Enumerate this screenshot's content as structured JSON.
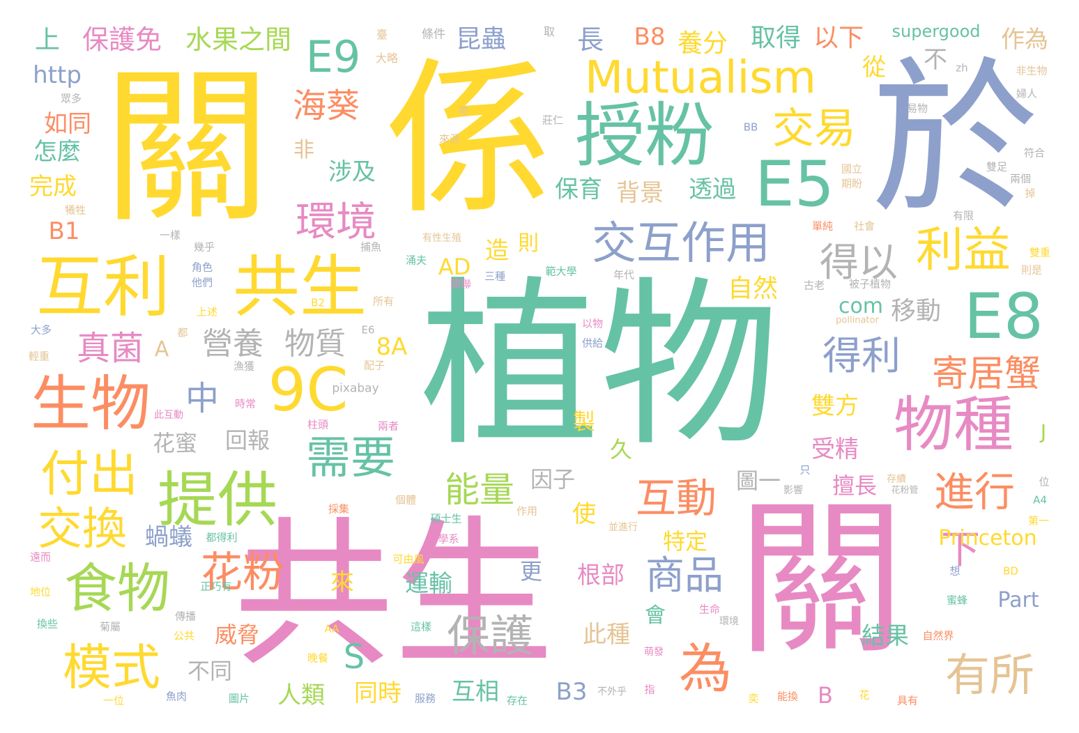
{
  "words": {
    "w001": "植物",
    "w002": "共生",
    "w003": "關",
    "w004": "係",
    "w005": "於",
    "w006": "關",
    "w007": "授粉",
    "w008": "Mutualism",
    "w009": "互利",
    "w010": "共生",
    "w011": "生物",
    "w012": "E5",
    "w013": "E8",
    "w014": "E9",
    "w015": "9C",
    "w016": "交互作用",
    "w017": "利益",
    "w018": "交易",
    "w019": "環境",
    "w020": "物種",
    "w021": "提供",
    "w022": "食物",
    "w023": "需要",
    "w024": "付出",
    "w025": "交換",
    "w026": "模式",
    "w027": "為",
    "w028": "得以",
    "w029": "得利",
    "w030": "寄居蟹",
    "w031": "進行",
    "w032": "互動",
    "w033": "保護",
    "w034": "花粉",
    "w035": "商品",
    "w036": "有所",
    "w037": "下",
    "w038": "海葵",
    "w039": "真菌",
    "w040": "中",
    "w041": "S",
    "w042": "能量",
    "w043": "營養",
    "w044": "物質",
    "w045": "保護免",
    "w046": "水果之間",
    "w047": "昆蟲",
    "w048": "長",
    "w049": "B8",
    "w050": "養分",
    "w051": "取得",
    "w052": "以下",
    "w053": "作為",
    "w054": "supergood",
    "w055": "上",
    "w056": "http",
    "w057": "如同",
    "w058": "怎麼",
    "w059": "完成",
    "w060": "B1",
    "w061": "非",
    "w062": "涉及",
    "w063": "保育",
    "w064": "背景",
    "w065": "透過",
    "w066": "從",
    "w067": "不",
    "w068": "造",
    "w069": "則",
    "w070": "AD",
    "w071": "自然",
    "w072": "com",
    "w073": "移動",
    "w074": "A",
    "w075": "8A",
    "w076": "花蜜",
    "w077": "回報",
    "w078": "雙方",
    "w079": "受精",
    "w080": "製",
    "w081": "久",
    "w082": "因子",
    "w083": "圖一",
    "w084": "擅長",
    "w085": "使",
    "w086": "特定",
    "w087": "Princeton",
    "w088": "蝸蟻",
    "w089": "更",
    "w090": "運輸",
    "w091": "來",
    "w092": "根部",
    "w093": "會",
    "w094": "此種",
    "w095": "結果",
    "w096": "Part",
    "w097": "威脅",
    "w098": "不同",
    "w099": "人類",
    "w100": "同時",
    "w101": "互相",
    "w102": "B3",
    "w103": "B",
    "w104": "J",
    "w105": "條件",
    "w106": "取",
    "w107": "臺",
    "w108": "大略",
    "w109": "zh",
    "w110": "眾多",
    "w111": "帶",
    "w112": "莊仁",
    "w113": "來源",
    "w114": "易物",
    "w115": "BB",
    "w116": "非生物",
    "w117": "婦人",
    "w118": "符合",
    "w119": "國立",
    "w120": "期盼",
    "w121": "犧牲",
    "w122": "雙足",
    "w123": "兩個",
    "w124": "掉",
    "w125": "有限",
    "w126": "一樣",
    "w127": "幾乎",
    "w128": "有性生殖",
    "w129": "捕魚",
    "w130": "單純",
    "w131": "社會",
    "w132": "角色",
    "w133": "他們",
    "w134": "涌夫",
    "w135": "三種",
    "w136": "範大學",
    "w137": "年代",
    "w138": "關聯",
    "w139": "雙重",
    "w140": "則是",
    "w141": "上述",
    "w142": "B2",
    "w143": "所有",
    "w144": "古老",
    "w145": "被子植物",
    "w146": "大多",
    "w147": "都",
    "w148": "E6",
    "w149": "以物",
    "w150": "pollinator",
    "w151": "輕重",
    "w152": "供給",
    "w153": "漁獲",
    "w154": "配子",
    "w155": "pixabay",
    "w156": "時常",
    "w157": "此互動",
    "w158": "柱頭",
    "w159": "兩者",
    "w160": "只",
    "w161": "存續",
    "w162": "位",
    "w163": "影響",
    "w164": "花粉管",
    "w165": "A4",
    "w166": "個體",
    "w167": "碩士生",
    "w168": "作用",
    "w169": "並進行",
    "w170": "都得利",
    "w171": "採集",
    "w172": "科學系",
    "w173": "第一",
    "w174": "遠而",
    "w175": "可由風",
    "w176": "BD",
    "w177": "想",
    "w178": "地位",
    "w179": "正巧有",
    "w180": "生命",
    "w181": "蜜蜂",
    "w182": "傳播",
    "w183": "環境",
    "w184": "換些",
    "w185": "菊屬",
    "w186": "AA",
    "w187": "這樣",
    "w188": "自然界",
    "w189": "公共",
    "w190": "晚餐",
    "w191": "萌發",
    "w192": "一位",
    "w193": "魚肉",
    "w194": "圖片",
    "w195": "服務",
    "w196": "存在",
    "w197": "不外乎",
    "w198": "指",
    "w199": "奕",
    "w200": "能換",
    "w201": "花",
    "w202": "具有"
  },
  "palette": {
    "teal": "#66c2a5",
    "orange": "#fc8d62",
    "blue": "#8da0cb",
    "pink": "#e78ac3",
    "green": "#a6d854",
    "yellow": "#ffd92f",
    "tan": "#e5c494",
    "gray": "#b3b3b3"
  }
}
